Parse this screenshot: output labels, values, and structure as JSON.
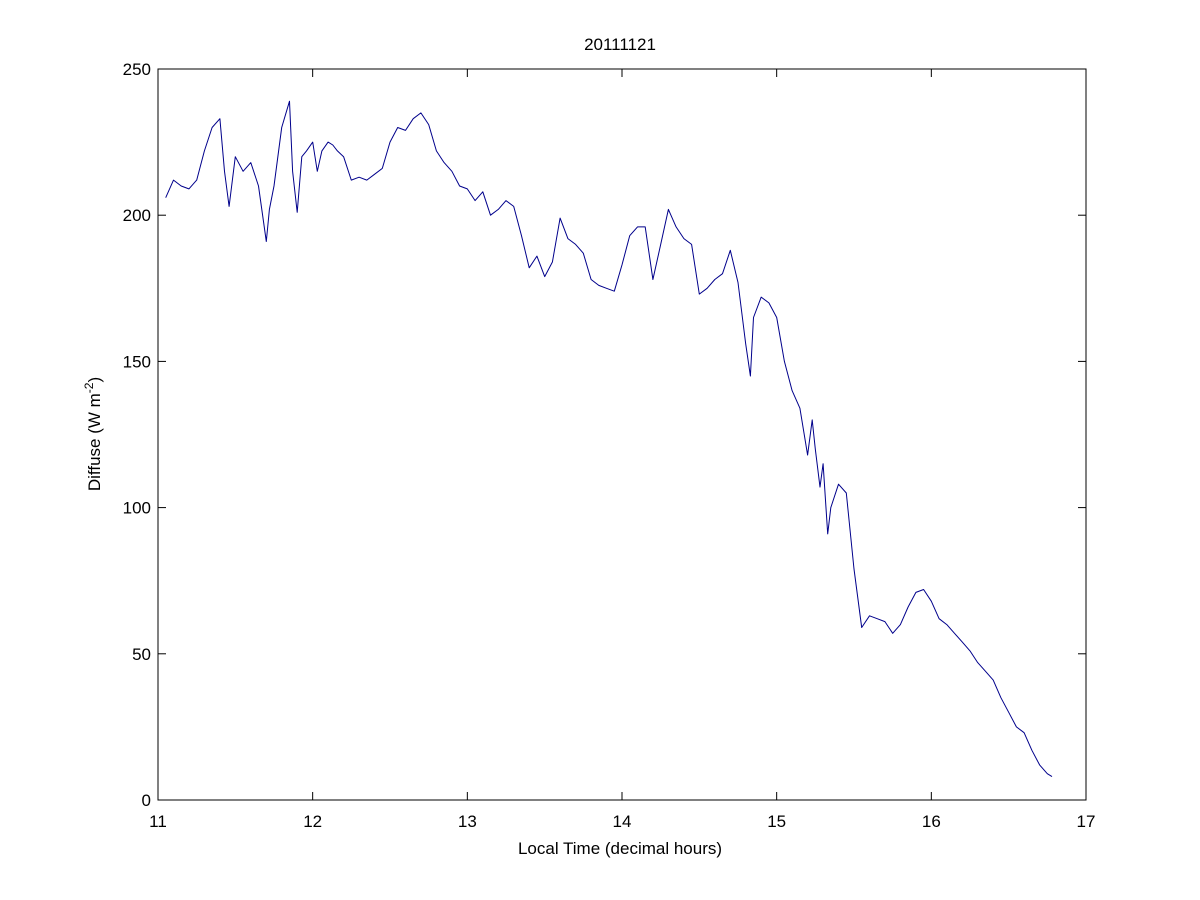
{
  "chart_data": {
    "type": "line",
    "title": "20111121",
    "xlabel": "Local Time (decimal hours)",
    "ylabel": "Diffuse (W m",
    "ylabel_superscript": "-2",
    "ylabel_suffix": ")",
    "xlim": [
      11,
      17
    ],
    "ylim": [
      0,
      250
    ],
    "xticks": [
      "11",
      "12",
      "13",
      "14",
      "15",
      "16",
      "17"
    ],
    "yticks": [
      "0",
      "50",
      "100",
      "150",
      "200",
      "250"
    ],
    "grid": false,
    "line_color": "#00008b",
    "series": [
      {
        "x": [
          11.05,
          11.1,
          11.15,
          11.2,
          11.25,
          11.3,
          11.35,
          11.4,
          11.43,
          11.46,
          11.5,
          11.55,
          11.6,
          11.65,
          11.7,
          11.72,
          11.75,
          11.8,
          11.85,
          11.87,
          11.9,
          11.93,
          11.96,
          12.0,
          12.03,
          12.06,
          12.1,
          12.13,
          12.16,
          12.2,
          12.25,
          12.3,
          12.35,
          12.4,
          12.45,
          12.5,
          12.55,
          12.6,
          12.65,
          12.7,
          12.75,
          12.8,
          12.85,
          12.9,
          12.95,
          13.0,
          13.05,
          13.1,
          13.15,
          13.2,
          13.25,
          13.3,
          13.35,
          13.4,
          13.45,
          13.5,
          13.55,
          13.6,
          13.65,
          13.7,
          13.75,
          13.8,
          13.85,
          13.9,
          13.95,
          14.0,
          14.05,
          14.1,
          14.15,
          14.2,
          14.25,
          14.3,
          14.35,
          14.4,
          14.45,
          14.5,
          14.55,
          14.6,
          14.65,
          14.7,
          14.75,
          14.8,
          14.83,
          14.85,
          14.9,
          14.95,
          15.0,
          15.05,
          15.1,
          15.15,
          15.2,
          15.23,
          15.25,
          15.28,
          15.3,
          15.33,
          15.35,
          15.4,
          15.45,
          15.5,
          15.55,
          15.6,
          15.65,
          15.7,
          15.75,
          15.8,
          15.85,
          15.9,
          15.95,
          16.0,
          16.05,
          16.1,
          16.15,
          16.2,
          16.25,
          16.3,
          16.35,
          16.4,
          16.45,
          16.5,
          16.55,
          16.6,
          16.65,
          16.7,
          16.75,
          16.78
        ],
        "y": [
          206,
          212,
          210,
          209,
          212,
          222,
          230,
          233,
          215,
          203,
          220,
          215,
          218,
          210,
          191,
          202,
          210,
          230,
          239,
          215,
          201,
          220,
          222,
          225,
          215,
          222,
          225,
          224,
          222,
          220,
          212,
          213,
          212,
          214,
          216,
          225,
          230,
          229,
          233,
          235,
          231,
          222,
          218,
          215,
          210,
          209,
          205,
          208,
          200,
          202,
          205,
          203,
          193,
          182,
          186,
          179,
          184,
          199,
          192,
          190,
          187,
          178,
          176,
          175,
          174,
          183,
          193,
          196,
          196,
          178,
          190,
          202,
          196,
          192,
          190,
          173,
          175,
          178,
          180,
          188,
          177,
          156,
          145,
          165,
          172,
          170,
          165,
          150,
          140,
          134,
          118,
          130,
          120,
          107,
          115,
          91,
          100,
          108,
          105,
          79,
          59,
          63,
          62,
          61,
          57,
          60,
          66,
          71,
          72,
          68,
          62,
          60,
          57,
          54,
          51,
          47,
          44,
          41,
          35,
          30,
          25,
          23,
          17,
          12,
          9,
          8
        ]
      }
    ]
  }
}
